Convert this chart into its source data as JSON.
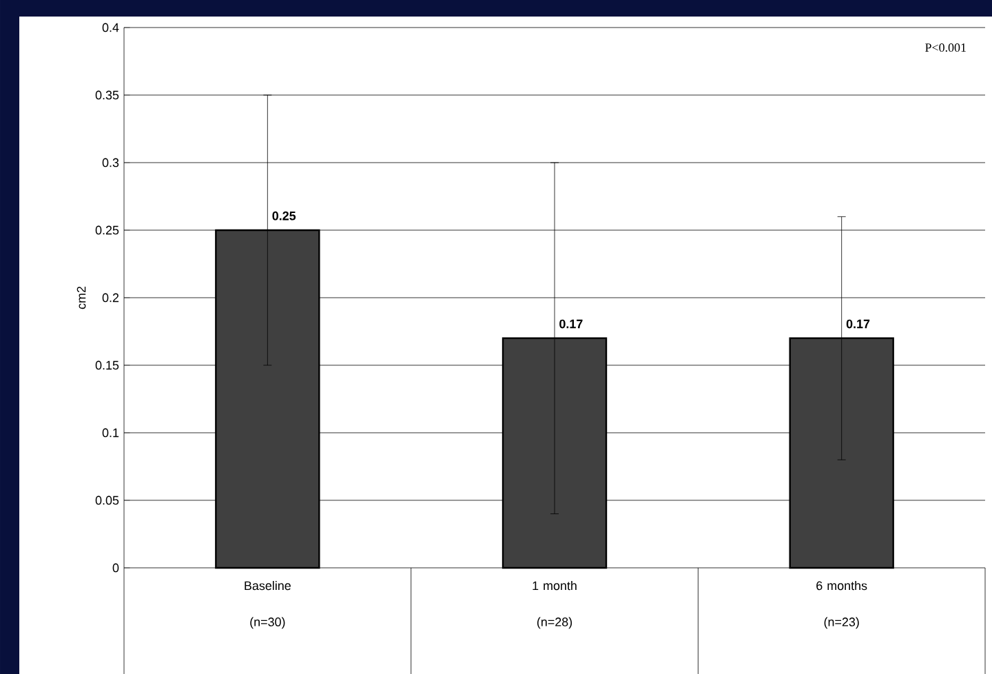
{
  "chart_data": {
    "type": "bar",
    "ylabel": "cm2",
    "annotations": [
      "P<0.001"
    ],
    "categories": [
      "Baseline (n=30)",
      "1 month (n=28)",
      "6 months (n=23)"
    ],
    "values": [
      0.25,
      0.17,
      0.17
    ],
    "color": "#404040",
    "errors": [
      [
        0.15,
        0.35
      ],
      [
        0.04,
        0.3
      ],
      [
        0.08,
        0.26
      ]
    ],
    "ylim": [
      0,
      0.4
    ],
    "yticks": [
      0,
      0.05,
      0.1,
      0.15,
      0.2,
      0.25,
      0.3,
      0.35,
      0.4
    ],
    "grid": "y",
    "data_labels": true
  }
}
